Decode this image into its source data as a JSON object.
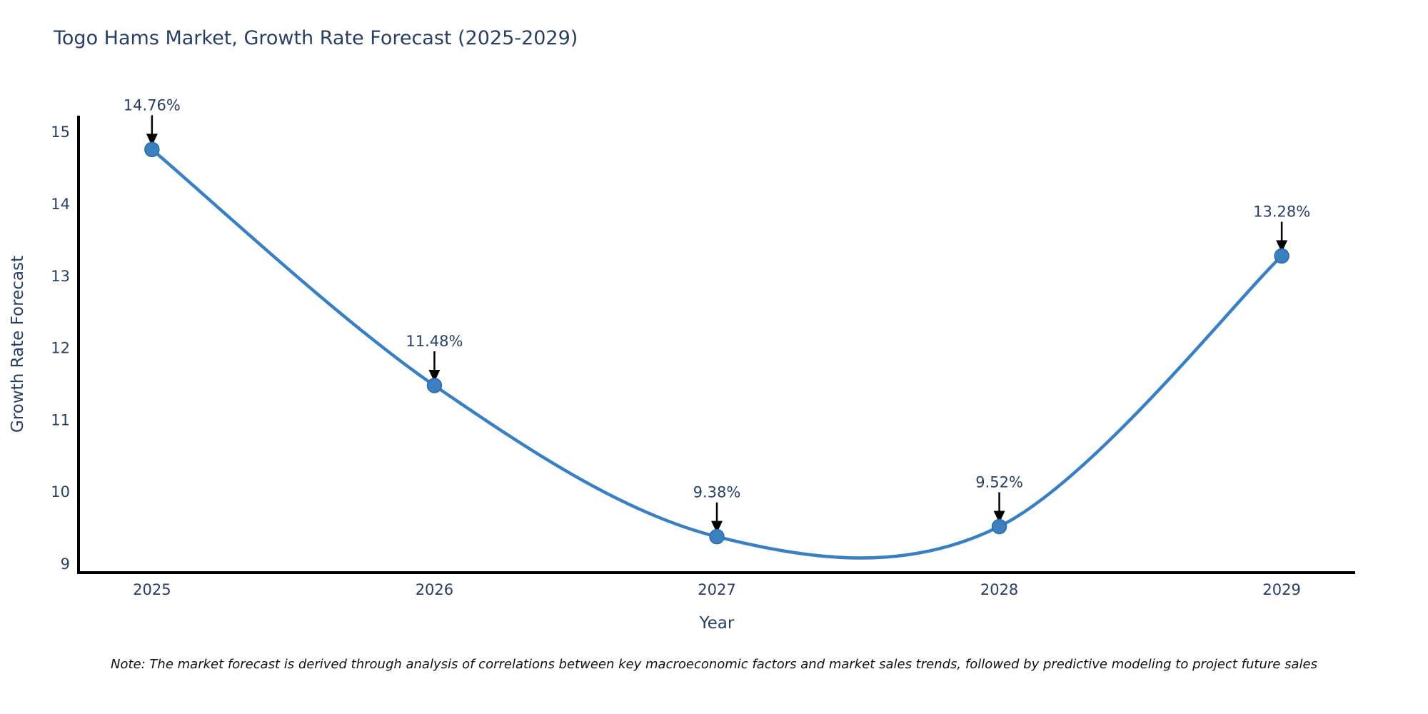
{
  "title": "Togo Hams Market, Growth Rate Forecast (2025-2029)",
  "note": "Note: The market forecast is derived through analysis of correlations between key macroeconomic factors and market sales trends, followed by predictive modeling to project future sales",
  "colors": {
    "line": "#3a80c1",
    "marker_fill": "#3a80c1",
    "marker_edge": "#2e6ba8",
    "axis_line": "#000000",
    "tick_text": "#2a3f5f",
    "annotation_text": "#2a3f5f",
    "arrow": "#000000",
    "title_text": "#2a3f5f",
    "note_text": "#111111",
    "background": "#ffffff"
  },
  "chart_data": {
    "type": "line",
    "title": "Togo Hams Market, Growth Rate Forecast (2025-2029)",
    "xlabel": "Year",
    "ylabel": "Growth Rate Forecast",
    "x": [
      2025,
      2026,
      2027,
      2028,
      2029
    ],
    "y": [
      14.76,
      11.48,
      9.38,
      9.52,
      13.28
    ],
    "point_labels": [
      "14.76%",
      "11.48%",
      "9.38%",
      "9.52%",
      "13.28%"
    ],
    "xtick_labels": [
      "2025",
      "2026",
      "2027",
      "2028",
      "2029"
    ],
    "ytick_values": [
      9,
      10,
      11,
      12,
      13,
      14,
      15
    ],
    "ytick_labels": [
      "9",
      "10",
      "11",
      "12",
      "13",
      "14",
      "15"
    ],
    "xlim": [
      2024.74,
      2029.26
    ],
    "ylim": [
      8.88,
      15.23
    ],
    "grid": false,
    "legend": false,
    "line_style": "smooth-spline",
    "annotations": "value labels with downward arrows above each point"
  }
}
